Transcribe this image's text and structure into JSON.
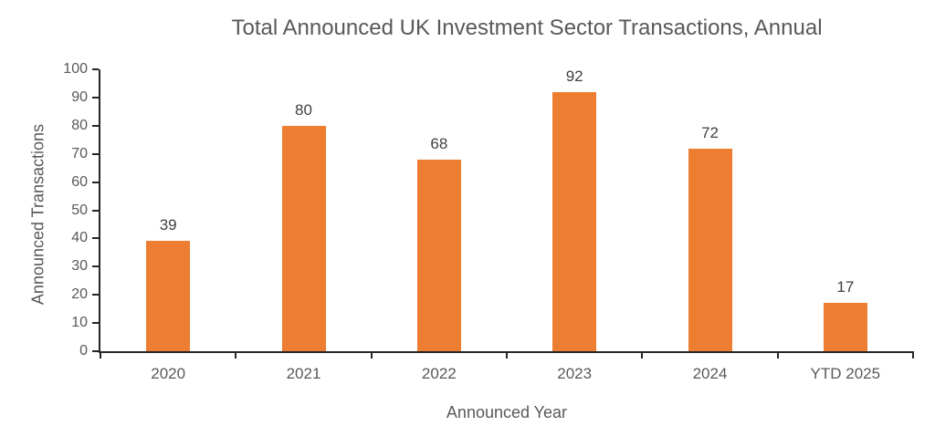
{
  "chart_data": {
    "type": "bar",
    "title": "Total Announced UK Investment Sector Transactions, Annual",
    "xlabel": "Announced Year",
    "ylabel": "Announced Transactions",
    "categories": [
      "2020",
      "2021",
      "2022",
      "2023",
      "2024",
      "YTD 2025"
    ],
    "values": [
      39,
      80,
      68,
      92,
      72,
      17
    ],
    "yticks": [
      0,
      10,
      20,
      30,
      40,
      50,
      60,
      70,
      80,
      90,
      100
    ],
    "ylim": [
      0,
      100
    ],
    "grid": false,
    "legend": "none",
    "data_labels_position": "outside-end",
    "colors": {
      "bar": "#ED7D31",
      "axis_line": "#262626",
      "axis_text": "#595959",
      "data_label": "#404040",
      "background": "#FFFFFF"
    }
  }
}
